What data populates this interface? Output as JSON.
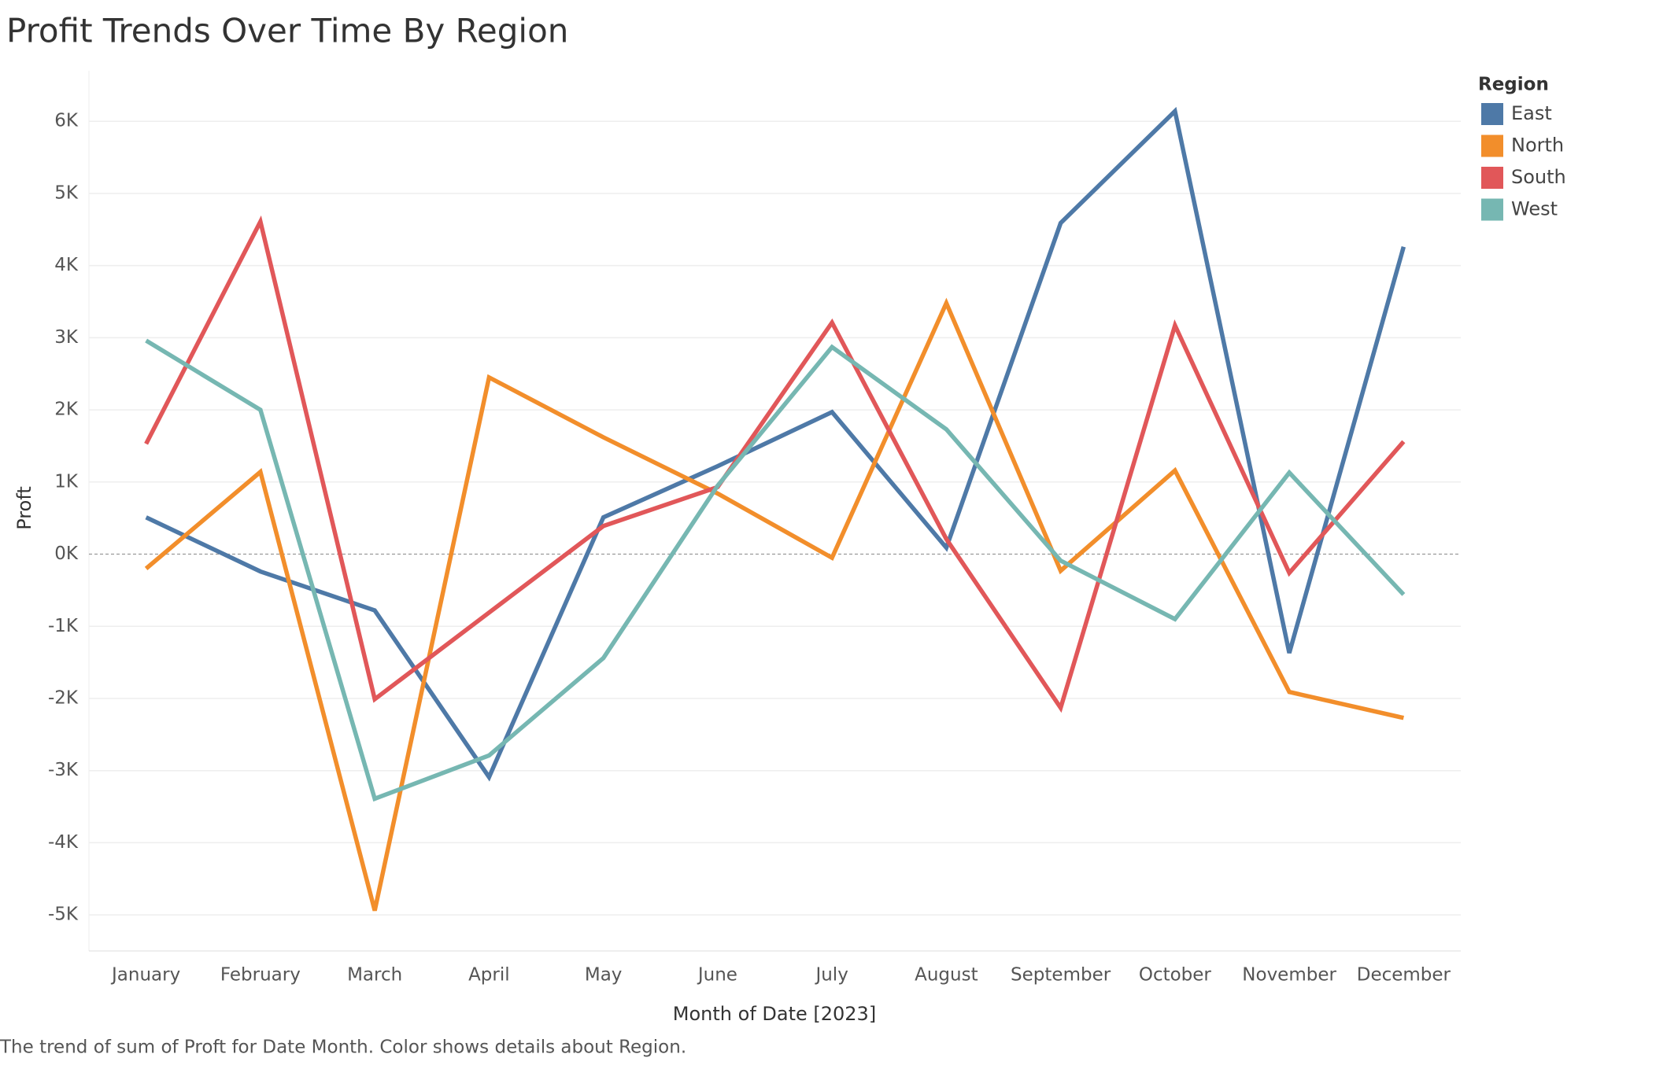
{
  "chart_data": {
    "type": "line",
    "title": "Profit Trends Over Time By Region",
    "x_label": "Month of Date [2023]",
    "y_label": "Proft",
    "caption": "The trend of sum of Proft for Date Month.  Color shows details about Region.",
    "legend_title": "Region",
    "legend": "right",
    "grid": true,
    "categories": [
      "January",
      "February",
      "March",
      "April",
      "May",
      "June",
      "July",
      "August",
      "September",
      "October",
      "November",
      "December"
    ],
    "ylim": [
      -5500,
      6700
    ],
    "yticks": [
      {
        "value": 6000,
        "label": "6K"
      },
      {
        "value": 5000,
        "label": "5K"
      },
      {
        "value": 4000,
        "label": "4K"
      },
      {
        "value": 3000,
        "label": "3K"
      },
      {
        "value": 2000,
        "label": "2K"
      },
      {
        "value": 1000,
        "label": "1K"
      },
      {
        "value": 0,
        "label": "0K"
      },
      {
        "value": -1000,
        "label": "-1K"
      },
      {
        "value": -2000,
        "label": "-2K"
      },
      {
        "value": -3000,
        "label": "-3K"
      },
      {
        "value": -4000,
        "label": "-4K"
      },
      {
        "value": -5000,
        "label": "-5K"
      }
    ],
    "series": [
      {
        "name": "East",
        "color": "#4e79a7",
        "values": [
          510,
          -240,
          -780,
          -3090,
          510,
          1220,
          1970,
          90,
          4590,
          6140,
          -1370,
          4260
        ]
      },
      {
        "name": "North",
        "color": "#f28e2b",
        "values": [
          -200,
          1140,
          -4940,
          2450,
          1620,
          840,
          -50,
          3480,
          -230,
          1160,
          -1910,
          -2270
        ]
      },
      {
        "name": "South",
        "color": "#e15759",
        "values": [
          1530,
          4610,
          -2010,
          -810,
          390,
          930,
          3210,
          210,
          -2130,
          3170,
          -260,
          1560
        ]
      },
      {
        "name": "West",
        "color": "#76b7b2",
        "values": [
          2960,
          2000,
          -3390,
          -2790,
          -1440,
          950,
          2870,
          1730,
          -90,
          -900,
          1130,
          -560
        ]
      }
    ]
  }
}
